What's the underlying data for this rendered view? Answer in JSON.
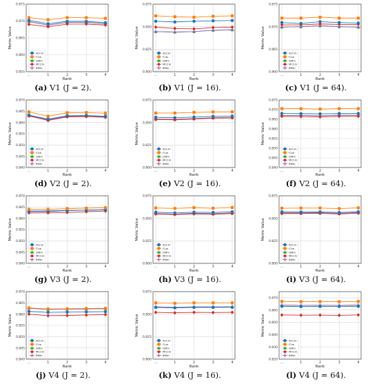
{
  "colors": {
    "ACCm": "#1f77b4",
    "F1m": "#ff7f0e",
    "GMm": "#2ca02c",
    "MCCm": "#d62728",
    "BMm": "#9467bd"
  },
  "chart_data": [
    {
      "id": "a",
      "type": "line",
      "caption_label": "(a)",
      "caption_text": "V1 (J = 2).",
      "x": [
        "...",
        "1",
        "2",
        "3",
        "4"
      ],
      "xlabel": "Rank",
      "ylabel": "Metric Value",
      "ylim": [
        0.855,
        0.875
      ],
      "yticks": [
        "0.855",
        "0.860",
        "0.865",
        "0.870",
        "0.875"
      ],
      "grid": true,
      "legend": "lower-left",
      "series": [
        {
          "name": "ACCm",
          "values": [
            0.8702,
            0.8692,
            0.8699,
            0.8699,
            0.8695
          ]
        },
        {
          "name": "F1m",
          "values": [
            0.871,
            0.8704,
            0.871,
            0.871,
            0.8708
          ]
        },
        {
          "name": "GMm",
          "values": [
            0.8698,
            0.8688,
            0.8696,
            0.8696,
            0.8692
          ]
        },
        {
          "name": "MCCm",
          "values": [
            0.869,
            0.8683,
            0.8691,
            0.8691,
            0.8688
          ]
        },
        {
          "name": "BMm",
          "values": [
            0.8698,
            0.8688,
            0.8696,
            0.8696,
            0.8692
          ]
        }
      ]
    },
    {
      "id": "b",
      "type": "line",
      "caption_label": "(b)",
      "caption_text": "V1 (J = 16).",
      "x": [
        "...",
        "1",
        "2",
        "3",
        "4"
      ],
      "xlabel": "Rank",
      "ylabel": "Metric Value",
      "ylim": [
        0.8,
        0.875
      ],
      "yticks": [
        "0.800",
        "0.825",
        "0.850",
        "0.875"
      ],
      "grid": true,
      "legend": "lower-left",
      "series": [
        {
          "name": "ACCm",
          "values": [
            0.856,
            0.8552,
            0.856,
            0.8565,
            0.8568
          ]
        },
        {
          "name": "F1m",
          "values": [
            0.862,
            0.861,
            0.8605,
            0.8615,
            0.862
          ]
        },
        {
          "name": "GMm",
          "values": [
            0.8445,
            0.844,
            0.8445,
            0.846,
            0.8465
          ]
        },
        {
          "name": "MCCm",
          "values": [
            0.8495,
            0.848,
            0.8475,
            0.849,
            0.8495
          ]
        },
        {
          "name": "BMm",
          "values": [
            0.8445,
            0.844,
            0.8445,
            0.846,
            0.8465
          ]
        }
      ]
    },
    {
      "id": "c",
      "type": "line",
      "caption_label": "(c)",
      "caption_text": "V1 (J = 64).",
      "x": [
        "...",
        "1",
        "2",
        "3",
        "4"
      ],
      "xlabel": "Rank",
      "ylabel": "Metric Value",
      "ylim": [
        0.86,
        0.875
      ],
      "yticks": [
        "0.860",
        "0.865",
        "0.870",
        "0.875"
      ],
      "grid": true,
      "legend": "lower-left",
      "series": [
        {
          "name": "ACCm",
          "values": [
            0.8709,
            0.8707,
            0.8711,
            0.8709,
            0.8708
          ]
        },
        {
          "name": "F1m",
          "values": [
            0.8719,
            0.8719,
            0.8721,
            0.8719,
            0.8719
          ]
        },
        {
          "name": "GMm",
          "values": [
            0.8699,
            0.87,
            0.8702,
            0.87,
            0.8699
          ]
        },
        {
          "name": "MCCm",
          "values": [
            0.8704,
            0.8704,
            0.8706,
            0.8705,
            0.8705
          ]
        },
        {
          "name": "BMm",
          "values": [
            0.8699,
            0.87,
            0.8702,
            0.87,
            0.8699
          ]
        }
      ]
    },
    {
      "id": "d",
      "type": "line",
      "caption_label": "(d)",
      "caption_text": "V2 (J = 2).",
      "x": [
        "...",
        "1",
        "2",
        "3",
        "4"
      ],
      "xlabel": "Rank",
      "ylabel": "Metric Value",
      "ylim": [
        0.84,
        0.87
      ],
      "yticks": [
        "0.840",
        "0.845",
        "0.850",
        "0.855",
        "0.860",
        "0.865",
        "0.870"
      ],
      "grid": true,
      "legend": "lower-left",
      "series": [
        {
          "name": "ACCm",
          "values": [
            0.8633,
            0.8615,
            0.863,
            0.8631,
            0.8628
          ]
        },
        {
          "name": "F1m",
          "values": [
            0.8647,
            0.8628,
            0.8643,
            0.8644,
            0.8641
          ]
        },
        {
          "name": "GMm",
          "values": [
            0.863,
            0.8612,
            0.8627,
            0.8628,
            0.8625
          ]
        },
        {
          "name": "MCCm",
          "values": [
            0.8629,
            0.8609,
            0.8625,
            0.8626,
            0.8623
          ]
        },
        {
          "name": "BMm",
          "values": [
            0.863,
            0.8612,
            0.8627,
            0.8628,
            0.8625
          ]
        }
      ]
    },
    {
      "id": "e",
      "type": "line",
      "caption_label": "(e)",
      "caption_text": "V2 (J = 16).",
      "x": [
        "...",
        "1",
        "2",
        "3",
        "4"
      ],
      "xlabel": "Rank",
      "ylabel": "Metric Value",
      "ylim": [
        0.8,
        0.875
      ],
      "yticks": [
        "0.800",
        "0.825",
        "0.850",
        "0.875"
      ],
      "grid": true,
      "legend": "lower-left",
      "series": [
        {
          "name": "ACCm",
          "values": [
            0.8557,
            0.8553,
            0.856,
            0.8568,
            0.8571
          ]
        },
        {
          "name": "F1m",
          "values": [
            0.8605,
            0.8605,
            0.8612,
            0.8617,
            0.8618
          ]
        },
        {
          "name": "GMm",
          "values": [
            0.8538,
            0.8535,
            0.8543,
            0.8552,
            0.8555
          ]
        },
        {
          "name": "MCCm",
          "values": [
            0.8533,
            0.853,
            0.8538,
            0.8548,
            0.8551
          ]
        },
        {
          "name": "BMm",
          "values": [
            0.8538,
            0.8535,
            0.8543,
            0.8552,
            0.8555
          ]
        }
      ]
    },
    {
      "id": "f",
      "type": "line",
      "caption_label": "(f)",
      "caption_text": "V2 (J = 64).",
      "x": [
        "...",
        "1",
        "2",
        "3",
        "4"
      ],
      "xlabel": "Rank",
      "ylabel": "Metric Value",
      "ylim": [
        0.84,
        0.875
      ],
      "yticks": [
        "0.840",
        "0.845",
        "0.850",
        "0.855",
        "0.860",
        "0.865",
        "0.870",
        "0.875"
      ],
      "grid": true,
      "legend": "lower-left",
      "series": [
        {
          "name": "ACCm",
          "values": [
            0.868,
            0.8679,
            0.8678,
            0.868,
            0.868
          ]
        },
        {
          "name": "F1m",
          "values": [
            0.8705,
            0.8705,
            0.8703,
            0.8705,
            0.8705
          ]
        },
        {
          "name": "GMm",
          "values": [
            0.867,
            0.867,
            0.8668,
            0.8671,
            0.8671
          ]
        },
        {
          "name": "MCCm",
          "values": [
            0.8665,
            0.8664,
            0.8662,
            0.8665,
            0.8665
          ]
        },
        {
          "name": "BMm",
          "values": [
            0.867,
            0.867,
            0.8668,
            0.8671,
            0.8671
          ]
        }
      ]
    },
    {
      "id": "g",
      "type": "line",
      "caption_label": "(g)",
      "caption_text": "V3 (J = 2).",
      "x": [
        "...",
        "1",
        "2",
        "3",
        "4"
      ],
      "xlabel": "Rank",
      "ylabel": "Metric Value",
      "ylim": [
        0.84,
        0.87
      ],
      "yticks": [
        "0.840",
        "0.845",
        "0.850",
        "0.855",
        "0.860",
        "0.865",
        "0.870"
      ],
      "grid": true,
      "legend": "lower-left",
      "series": [
        {
          "name": "ACCm",
          "values": [
            0.863,
            0.863,
            0.8634,
            0.8636,
            0.8638
          ]
        },
        {
          "name": "F1m",
          "values": [
            0.864,
            0.864,
            0.8643,
            0.8645,
            0.8647
          ]
        },
        {
          "name": "GMm",
          "values": [
            0.8632,
            0.8633,
            0.8635,
            0.8636,
            0.8638
          ]
        },
        {
          "name": "MCCm",
          "values": [
            0.8624,
            0.8624,
            0.8626,
            0.8629,
            0.8632
          ]
        },
        {
          "name": "BMm",
          "values": [
            0.8632,
            0.8633,
            0.8635,
            0.8636,
            0.8638
          ]
        }
      ]
    },
    {
      "id": "h",
      "type": "line",
      "caption_label": "(h)",
      "caption_text": "V3 (J = 16).",
      "x": [
        "...",
        "1",
        "2",
        "3",
        "4"
      ],
      "xlabel": "Rank",
      "ylabel": "Metric Value",
      "ylim": [
        0.8,
        0.875
      ],
      "yticks": [
        "0.800",
        "0.825",
        "0.850",
        "0.875"
      ],
      "grid": true,
      "legend": "lower-left",
      "series": [
        {
          "name": "ACCm",
          "values": [
            0.8568,
            0.856,
            0.8568,
            0.8565,
            0.8572
          ]
        },
        {
          "name": "F1m",
          "values": [
            0.8615,
            0.861,
            0.8618,
            0.8612,
            0.862
          ]
        },
        {
          "name": "GMm",
          "values": [
            0.8553,
            0.8547,
            0.8555,
            0.8551,
            0.8558
          ]
        },
        {
          "name": "MCCm",
          "values": [
            0.8548,
            0.8541,
            0.8549,
            0.8545,
            0.8553
          ]
        },
        {
          "name": "BMm",
          "values": [
            0.8553,
            0.8547,
            0.8555,
            0.8551,
            0.8558
          ]
        }
      ]
    },
    {
      "id": "i",
      "type": "line",
      "caption_label": "(i)",
      "caption_text": "V3 (J = 64).",
      "x": [
        "...",
        "1",
        "2",
        "3",
        "4"
      ],
      "xlabel": "Rank",
      "ylabel": "Metric Value",
      "ylim": [
        0.8,
        0.875
      ],
      "yticks": [
        "0.800",
        "0.825",
        "0.850",
        "0.875"
      ],
      "grid": true,
      "legend": "lower-left",
      "series": [
        {
          "name": "ACCm",
          "values": [
            0.8572,
            0.857,
            0.8571,
            0.8565,
            0.8573
          ]
        },
        {
          "name": "F1m",
          "values": [
            0.8612,
            0.8614,
            0.8614,
            0.8608,
            0.8616
          ]
        },
        {
          "name": "GMm",
          "values": [
            0.856,
            0.856,
            0.8562,
            0.8555,
            0.8564
          ]
        },
        {
          "name": "MCCm",
          "values": [
            0.8553,
            0.8553,
            0.8555,
            0.8548,
            0.8557
          ]
        },
        {
          "name": "BMm",
          "values": [
            0.856,
            0.856,
            0.8562,
            0.8555,
            0.8564
          ]
        }
      ]
    },
    {
      "id": "j",
      "type": "line",
      "caption_label": "(j)",
      "caption_text": "V4 (J = 2).",
      "x": [
        "...",
        "1",
        "2",
        "3",
        "4"
      ],
      "xlabel": "Rank",
      "ylabel": "Metric Value",
      "ylim": [
        0.84,
        0.87
      ],
      "yticks": [
        "0.840",
        "0.845",
        "0.850",
        "0.855",
        "0.860",
        "0.865",
        "0.870"
      ],
      "grid": true,
      "legend": "lower-left",
      "series": [
        {
          "name": "ACCm",
          "values": [
            0.8612,
            0.8608,
            0.8609,
            0.861,
            0.8611
          ]
        },
        {
          "name": "F1m",
          "values": [
            0.8628,
            0.8623,
            0.8624,
            0.8625,
            0.8626
          ]
        },
        {
          "name": "GMm",
          "values": [
            0.8626,
            0.8621,
            0.8622,
            0.8623,
            0.8624
          ]
        },
        {
          "name": "MCCm",
          "values": [
            0.86,
            0.8593,
            0.8594,
            0.8596,
            0.8598
          ]
        },
        {
          "name": "BMm",
          "values": [
            0.8626,
            0.8621,
            0.8622,
            0.8623,
            0.8624
          ]
        }
      ]
    },
    {
      "id": "k",
      "type": "line",
      "caption_label": "(k)",
      "caption_text": "V4 (J = 16).",
      "x": [
        "...",
        "1",
        "2",
        "3",
        "4"
      ],
      "xlabel": "Rank",
      "ylabel": "Metric Value",
      "ylim": [
        0.8,
        0.875
      ],
      "yticks": [
        "0.800",
        "0.825",
        "0.850",
        "0.875"
      ],
      "grid": true,
      "legend": "lower-left",
      "series": [
        {
          "name": "ACCm",
          "values": [
            0.8575,
            0.857,
            0.8575,
            0.8575,
            0.8576
          ]
        },
        {
          "name": "F1m",
          "values": [
            0.8625,
            0.862,
            0.8625,
            0.8625,
            0.8625
          ]
        },
        {
          "name": "GMm",
          "values": [
            0.858,
            0.8575,
            0.858,
            0.858,
            0.8581
          ]
        },
        {
          "name": "MCCm",
          "values": [
            0.852,
            0.8515,
            0.852,
            0.8518,
            0.852
          ]
        },
        {
          "name": "BMm",
          "values": [
            0.858,
            0.8575,
            0.858,
            0.858,
            0.8581
          ]
        }
      ]
    },
    {
      "id": "l",
      "type": "line",
      "caption_label": "(l)",
      "caption_text": "V4 (J = 64).",
      "x": [
        "...",
        "1",
        "2",
        "3",
        "4"
      ],
      "xlabel": "Rank",
      "ylabel": "Metric Value",
      "ylim": [
        0.82,
        0.875
      ],
      "yticks": [
        "0.820",
        "0.830",
        "0.840",
        "0.850",
        "0.860",
        "0.870"
      ],
      "grid": true,
      "legend": "lower-left",
      "series": [
        {
          "name": "ACCm",
          "values": [
            0.863,
            0.8628,
            0.8629,
            0.8629,
            0.863
          ]
        },
        {
          "name": "F1m",
          "values": [
            0.867,
            0.8668,
            0.8669,
            0.8668,
            0.867
          ]
        },
        {
          "name": "GMm",
          "values": [
            0.864,
            0.8638,
            0.8639,
            0.8638,
            0.864
          ]
        },
        {
          "name": "MCCm",
          "values": [
            0.856,
            0.8558,
            0.8559,
            0.8557,
            0.856
          ]
        },
        {
          "name": "BMm",
          "values": [
            0.864,
            0.8638,
            0.8639,
            0.8638,
            0.864
          ]
        }
      ]
    }
  ]
}
